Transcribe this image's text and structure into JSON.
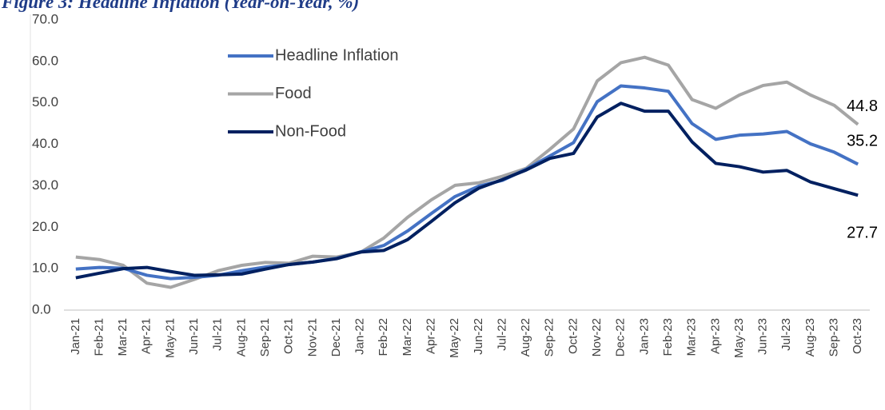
{
  "chart_data": {
    "type": "line",
    "title": "Figure 3: Headline Inflation (Year-on-Year, %)",
    "categories": [
      "Jan-21",
      "Feb-21",
      "Mar-21",
      "Apr-21",
      "May-21",
      "Jun-21",
      "Jul-21",
      "Aug-21",
      "Sep-21",
      "Oct-21",
      "Nov-21",
      "Dec-21",
      "Jan-22",
      "Feb-22",
      "Mar-22",
      "Apr-22",
      "May-22",
      "Jun-22",
      "Jul-22",
      "Aug-22",
      "Sep-22",
      "Oct-22",
      "Nov-22",
      "Dec-22",
      "Jan-23",
      "Feb-23",
      "Mar-23",
      "Apr-23",
      "May-23",
      "Jun-23",
      "Jul-23",
      "Aug-23",
      "Sep-23",
      "Oct-23"
    ],
    "series": [
      {
        "name": "Headline Inflation",
        "color": "#4472c4",
        "values": [
          9.9,
          10.3,
          10.1,
          8.4,
          7.6,
          7.9,
          8.4,
          9.5,
          10.4,
          11.0,
          11.6,
          12.5,
          14.0,
          15.6,
          19.1,
          23.3,
          27.4,
          29.9,
          31.3,
          34.0,
          37.2,
          40.4,
          50.3,
          54.1,
          53.6,
          52.8,
          45.0,
          41.2,
          42.2,
          42.5,
          43.1,
          40.1,
          38.1,
          35.2
        ]
      },
      {
        "name": "Food",
        "color": "#a5a5a5",
        "values": [
          12.8,
          12.2,
          10.8,
          6.5,
          5.5,
          7.4,
          9.5,
          10.8,
          11.5,
          11.3,
          13.0,
          12.8,
          13.9,
          17.4,
          22.4,
          26.6,
          30.1,
          30.7,
          32.3,
          34.2,
          38.8,
          43.7,
          55.3,
          59.7,
          61.0,
          59.1,
          50.8,
          48.7,
          51.9,
          54.2,
          55.0,
          51.9,
          49.4,
          44.8
        ]
      },
      {
        "name": "Non-Food",
        "color": "#002060",
        "values": [
          7.8,
          8.9,
          10.0,
          10.3,
          9.3,
          8.4,
          8.5,
          8.7,
          9.9,
          11.0,
          11.6,
          12.4,
          14.0,
          14.4,
          17.0,
          21.4,
          25.9,
          29.4,
          31.5,
          33.8,
          36.6,
          37.8,
          46.6,
          49.9,
          48.0,
          48.0,
          40.6,
          35.4,
          34.6,
          33.3,
          33.7,
          30.9,
          29.3,
          27.7
        ]
      }
    ],
    "ylim": [
      0,
      70
    ],
    "yticks": [
      {
        "value": 0,
        "label": "0.0"
      },
      {
        "value": 10,
        "label": "10.0"
      },
      {
        "value": 20,
        "label": "20.0"
      },
      {
        "value": 30,
        "label": "30.0"
      },
      {
        "value": 40,
        "label": "40.0"
      },
      {
        "value": 50,
        "label": "50.0"
      },
      {
        "value": 60,
        "label": "60.0"
      },
      {
        "value": 70,
        "label": "70.0"
      }
    ],
    "grid": false
  }
}
